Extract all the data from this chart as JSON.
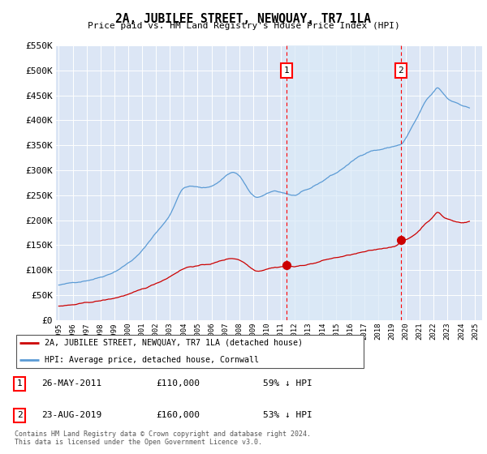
{
  "title": "2A, JUBILEE STREET, NEWQUAY, TR7 1LA",
  "subtitle": "Price paid vs. HM Land Registry's House Price Index (HPI)",
  "ylim": [
    0,
    550000
  ],
  "yticks": [
    0,
    50000,
    100000,
    150000,
    200000,
    250000,
    300000,
    350000,
    400000,
    450000,
    500000,
    550000
  ],
  "ytick_labels": [
    "£0",
    "£50K",
    "£100K",
    "£150K",
    "£200K",
    "£250K",
    "£300K",
    "£350K",
    "£400K",
    "£450K",
    "£500K",
    "£550K"
  ],
  "xlim_start": 1994.8,
  "xlim_end": 2025.5,
  "background_color": "#dce6f5",
  "plot_bg_color": "#dce6f5",
  "hpi_color": "#5b9bd5",
  "price_color": "#cc0000",
  "marker1_x": 2011.4,
  "marker1_y": 110000,
  "marker2_x": 2019.65,
  "marker2_y": 160000,
  "shade_color": "#d0e4f7",
  "legend_line1": "2A, JUBILEE STREET, NEWQUAY, TR7 1LA (detached house)",
  "legend_line2": "HPI: Average price, detached house, Cornwall",
  "annotation1_date": "26-MAY-2011",
  "annotation1_price": "£110,000",
  "annotation1_pct": "59% ↓ HPI",
  "annotation2_date": "23-AUG-2019",
  "annotation2_price": "£160,000",
  "annotation2_pct": "53% ↓ HPI",
  "footer": "Contains HM Land Registry data © Crown copyright and database right 2024.\nThis data is licensed under the Open Government Licence v3.0."
}
